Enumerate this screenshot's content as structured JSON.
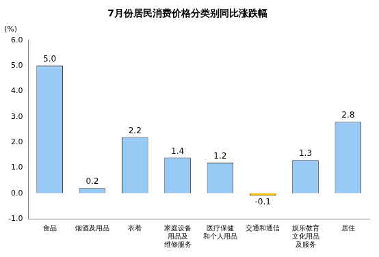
{
  "chart_data": {
    "type": "bar",
    "title": "7月份居民消费价格分类别同比涨跌幅",
    "y_label": "(%)",
    "categories": [
      "食品",
      "烟酒及用品",
      "衣着",
      "家庭设备\n用品及\n维修服务",
      "医疗保健\n和个人用品",
      "交通和通信",
      "娱乐教育\n文化用品\n及服务",
      "居住"
    ],
    "values": [
      5.0,
      0.2,
      2.2,
      1.4,
      1.2,
      -0.1,
      1.3,
      2.8
    ],
    "value_labels": [
      "5.0",
      "0.2",
      "2.2",
      "1.4",
      "1.2",
      "-0.1",
      "1.3",
      "2.8"
    ],
    "colors": [
      "#99c9f5",
      "#99c9f5",
      "#99c9f5",
      "#99c9f5",
      "#99c9f5",
      "#ffc000",
      "#99c9f5",
      "#99c9f5"
    ],
    "ylim": [
      -1.0,
      6.0
    ],
    "yticks": [
      {
        "value": -1,
        "label": "-1.0"
      },
      {
        "value": 0,
        "label": "0.0"
      },
      {
        "value": 1,
        "label": "1.0"
      },
      {
        "value": 2,
        "label": "2.0"
      },
      {
        "value": 3,
        "label": "3.0"
      },
      {
        "value": 4,
        "label": "4.0"
      },
      {
        "value": 5,
        "label": "5.0"
      },
      {
        "value": 6,
        "label": "6.0"
      }
    ],
    "grid": false,
    "data_labels": true
  }
}
